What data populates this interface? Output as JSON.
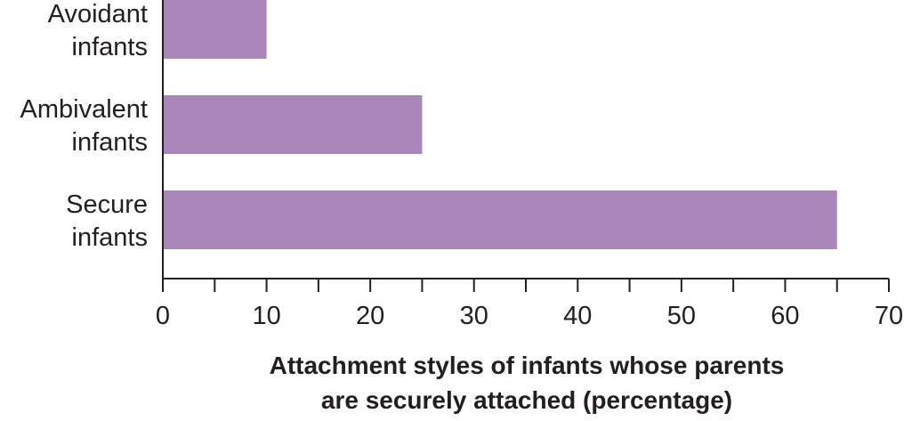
{
  "chart_data": {
    "type": "bar",
    "orientation": "horizontal",
    "categories": [
      [
        "Avoidant",
        "infants"
      ],
      [
        "Ambivalent",
        "infants"
      ],
      [
        "Secure",
        "infants"
      ]
    ],
    "values": [
      10,
      25,
      65
    ],
    "xlim": [
      0,
      70
    ],
    "xticks": [
      0,
      10,
      20,
      30,
      40,
      50,
      60,
      70
    ],
    "minor_ticks": [
      5,
      15,
      25,
      35,
      45,
      55,
      65
    ],
    "xlabel": [
      "Attachment styles of infants whose parents",
      "are securely attached (percentage)"
    ],
    "title": "",
    "grid": false,
    "colors": {
      "bar": "#a987b9",
      "axis": "#231f20",
      "text": "#231f20"
    }
  }
}
